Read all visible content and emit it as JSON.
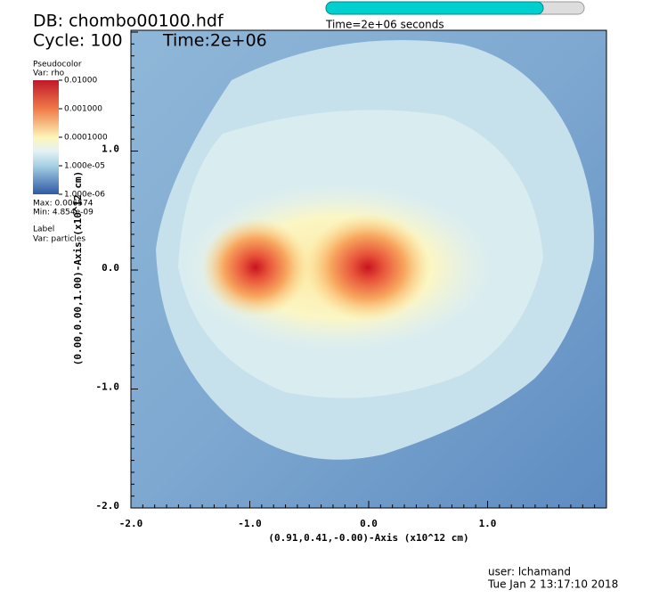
{
  "header": {
    "database": "DB: chombo00100.hdf",
    "cycle": "Cycle: 100",
    "time": "Time:2e+06",
    "progress_label": "Time=2e+06 seconds"
  },
  "legend": {
    "plot": "Pseudocolor",
    "variable": "Var: rho",
    "labels": [
      "0.01000",
      "0.001000",
      "0.0001000",
      "1.000e-05",
      "1.000e-06"
    ],
    "max": "Max: 0.006574",
    "min": "Min: 4.854e-09",
    "label_plot": "Label",
    "label_variable": "Var: particles"
  },
  "axes": {
    "x_title": "(0.91,0.41,-0.00)-Axis (x10^12 cm)",
    "y_title": "(0.00,0.00,1.00)-Axis (x10^12 cm)",
    "x_ticks": [
      "-2.0",
      "-1.0",
      "0.0",
      "1.0"
    ],
    "y_ticks": [
      "1.0",
      "0.0",
      "-1.0",
      "-2.0"
    ]
  },
  "footer": {
    "user": "user: lchamand",
    "date": "Tue Jan  2 13:17:10 2018"
  }
}
